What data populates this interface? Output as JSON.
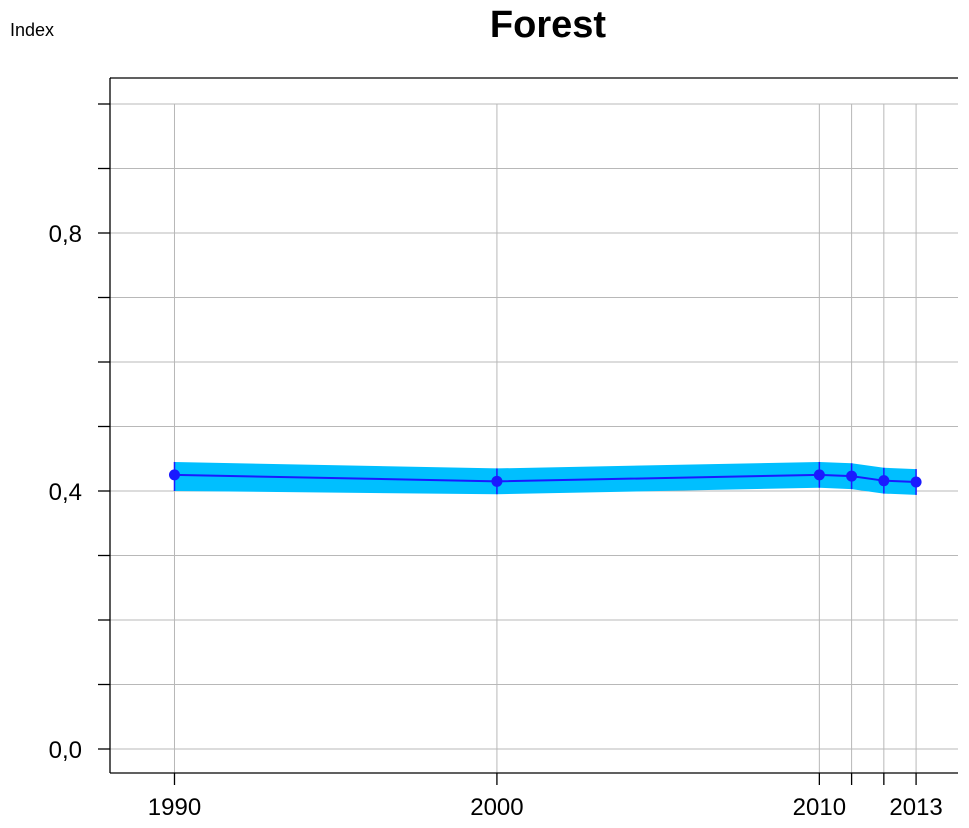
{
  "chart_data": {
    "type": "line",
    "title": "Forest",
    "ylabel": "Index",
    "xlabel": "",
    "x": [
      1990,
      2000,
      2010,
      2011,
      2012,
      2013
    ],
    "x_ticks": [
      1990,
      2000,
      2010,
      2011,
      2012,
      2013
    ],
    "x_tick_labels": [
      "1990",
      "2000",
      "2010",
      "",
      "",
      "2013"
    ],
    "xlim": [
      1988,
      2014.3
    ],
    "ylim": [
      0.0,
      1.0
    ],
    "y_major_ticks": [
      0.0,
      0.4,
      0.8
    ],
    "y_major_tick_labels": [
      "0,0",
      "0,4",
      "0,8"
    ],
    "y_minor_ticks": [
      0.1,
      0.2,
      0.3,
      0.5,
      0.6,
      0.7,
      0.9,
      1.0
    ],
    "series": [
      {
        "values": [
          0.425,
          0.415,
          0.425,
          0.423,
          0.416,
          0.414
        ],
        "lower": [
          0.4,
          0.395,
          0.405,
          0.403,
          0.396,
          0.394
        ],
        "upper": [
          0.445,
          0.435,
          0.445,
          0.443,
          0.436,
          0.434
        ],
        "line_color": "#1a1aff",
        "band_color": "#00bfff"
      }
    ],
    "grid": true,
    "legend": "none"
  }
}
